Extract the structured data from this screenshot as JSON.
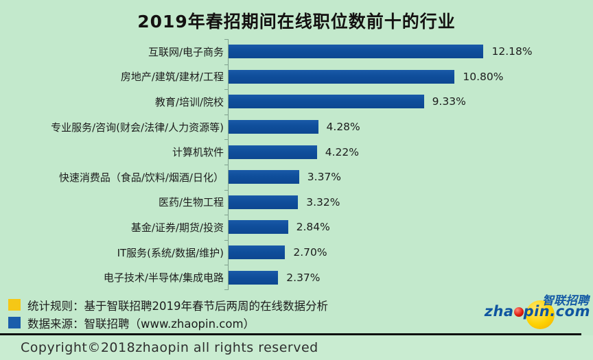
{
  "title": "2019年春招期间在线职位数前十的行业",
  "chart_data": {
    "type": "bar",
    "orientation": "horizontal",
    "title": "2019年春招期间在线职位数前十的行业",
    "xlabel": "",
    "ylabel": "",
    "xlim": [
      0,
      13
    ],
    "grid": false,
    "bar_color": "#0f4e9b",
    "categories": [
      "互联网/电子商务",
      "房地产/建筑/建材/工程",
      "教育/培训/院校",
      "专业服务/咨询(财会/法律/人力资源等)",
      "计算机软件",
      "快速消费品（食品/饮料/烟酒/日化）",
      "医药/生物工程",
      "基金/证券/期货/投资",
      "IT服务(系统/数据/维护)",
      "电子技术/半导体/集成电路"
    ],
    "values": [
      12.18,
      10.8,
      9.33,
      4.28,
      4.22,
      3.37,
      3.32,
      2.84,
      2.7,
      2.37
    ],
    "value_labels": [
      "12.18%",
      "10.80%",
      "9.33%",
      "4.28%",
      "4.22%",
      "3.37%",
      "3.32%",
      "2.84%",
      "2.70%",
      "2.37%"
    ]
  },
  "legend": {
    "items": [
      {
        "swatch": "yellow-square",
        "swatch_color": "#f5c716",
        "label": "统计规则：基于智联招聘2019年春节后两周的在线数据分析"
      },
      {
        "swatch": "blue-square",
        "swatch_color": "#1a5dab",
        "label": "数据来源：智联招聘（www.zhaopin.com）"
      }
    ]
  },
  "logo": {
    "cn_name": "智联招聘",
    "domain_prefix": "zha",
    "domain_suffix": "pin.com",
    "circle_color": "#fdd203",
    "dot_color": "#e01f10",
    "text_color": "#0f55a0"
  },
  "footer": {
    "copyright": "Copyright©2018zhaopin all rights reserved"
  },
  "colors": {
    "background": "#c3e9cc",
    "bar": "#0f4e9b",
    "title_text": "#141111",
    "axis": "#7fa08d",
    "separator": "#0c0c0c"
  }
}
